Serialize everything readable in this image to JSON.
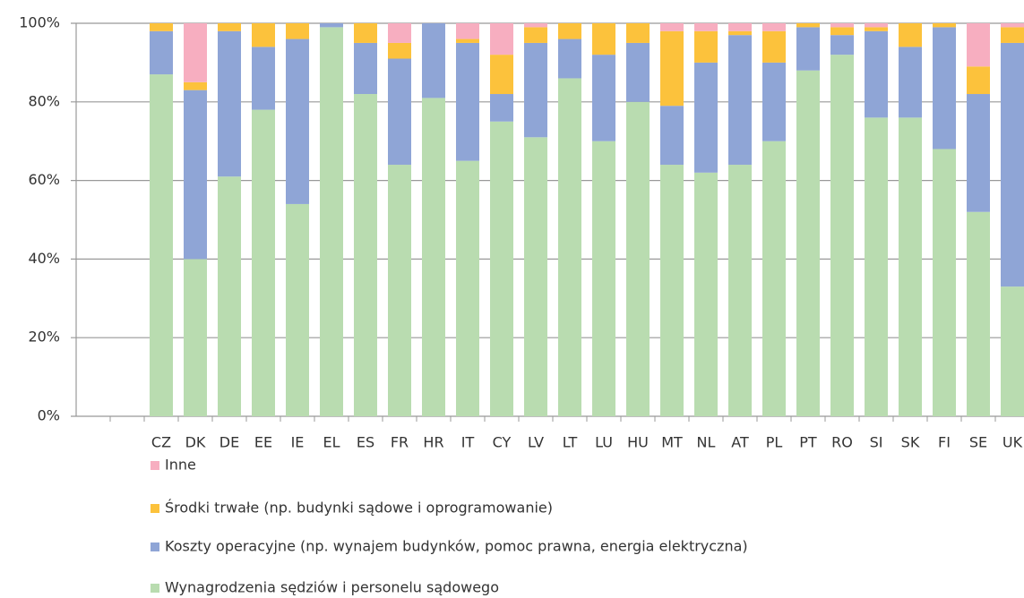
{
  "chart_data": {
    "type": "stacked_bar",
    "categories": [
      null,
      null,
      "CZ",
      "DK",
      "DE",
      "EE",
      "IE",
      "EL",
      "ES",
      "FR",
      "HR",
      "IT",
      "CY",
      "LV",
      "LT",
      "LU",
      "HU",
      "MT",
      "NL",
      "AT",
      "PL",
      "PT",
      "RO",
      "SI",
      "SK",
      "FI",
      "SE",
      "UK"
    ],
    "series": [
      {
        "name": "Wynagrodzenia sędziów i personelu sądowego",
        "color": "#b9dcb0",
        "values": [
          null,
          null,
          87,
          40,
          61,
          78,
          54,
          99,
          82,
          64,
          81,
          65,
          75,
          71,
          86,
          70,
          80,
          64,
          62,
          64,
          70,
          88,
          92,
          76,
          76,
          68,
          52,
          33
        ]
      },
      {
        "name": "Koszty operacyjne (np. wynajem budynków, pomoc prawna, energia elektryczna)",
        "color": "#8fa5d6",
        "values": [
          null,
          null,
          11,
          43,
          37,
          16,
          42,
          1,
          13,
          27,
          19,
          30,
          7,
          24,
          10,
          22,
          15,
          15,
          28,
          33,
          20,
          11,
          5,
          22,
          18,
          31,
          30,
          62
        ]
      },
      {
        "name": "Środki trwałe (np. budynki sądowe i oprogramowanie)",
        "color": "#fcc23c",
        "values": [
          null,
          null,
          2,
          2,
          2,
          6,
          4,
          0,
          5,
          4,
          0,
          1,
          10,
          4,
          4,
          8,
          5,
          19,
          8,
          1,
          8,
          1,
          2,
          1,
          6,
          1,
          7,
          4
        ]
      },
      {
        "name": "Inne",
        "color": "#f7aec0",
        "values": [
          null,
          null,
          0,
          15,
          0,
          0,
          0,
          0,
          0,
          5,
          0,
          4,
          8,
          1,
          0,
          0,
          0,
          2,
          2,
          2,
          2,
          0,
          1,
          1,
          0,
          0,
          11,
          1
        ]
      }
    ],
    "ylim": [
      0,
      100
    ],
    "yticks": [
      {
        "value": 0,
        "label": "0%"
      },
      {
        "value": 20,
        "label": "20%"
      },
      {
        "value": 40,
        "label": "40%"
      },
      {
        "value": 60,
        "label": "60%"
      },
      {
        "value": 80,
        "label": "80%"
      },
      {
        "value": 100,
        "label": "100%"
      }
    ],
    "grid": true
  }
}
